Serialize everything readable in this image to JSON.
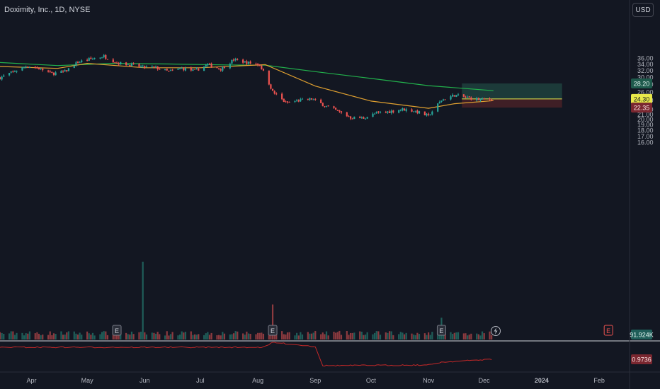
{
  "header": {
    "title": "Doximity, Inc., 1D, NYSE",
    "currency": "USD"
  },
  "colors": {
    "background": "#131722",
    "up": "#26a69a",
    "down": "#ef5350",
    "volume_up": "#1f5e59",
    "volume_down": "#8c3a3f",
    "ma_long": "#22b14c",
    "ma_short": "#e0a030",
    "indicator": "#c62828",
    "profit_zone": "#1c3a39",
    "loss_zone": "#3f1f26",
    "entry_line": "#e8e84a"
  },
  "chart_data": {
    "type": "candlestick",
    "symbol": "Doximity, Inc.",
    "interval": "1D",
    "exchange": "NYSE",
    "y_scale": "log",
    "y_ticks": [
      16.0,
      17.0,
      18.0,
      19.0,
      20.0,
      21.0,
      22.0,
      24.0,
      26.0,
      28.0,
      30.0,
      32.0,
      34.0,
      36.0
    ],
    "y_tick_labels": [
      "16.00",
      "17.00",
      "18.00",
      "19.00",
      "20.00",
      "21.00",
      "22.00",
      "24.00",
      "26.00",
      "28.00",
      "30.00",
      "32.00",
      "34.00",
      "36.00"
    ],
    "x_labels": [
      "Apr",
      "May",
      "Jun",
      "Jul",
      "Aug",
      "Sep",
      "Oct",
      "Nov",
      "Dec",
      "2024",
      "Feb"
    ],
    "x_label_dates": [
      "2023-04-01",
      "2023-05-01",
      "2023-06-01",
      "2023-07-01",
      "2023-08-01",
      "2023-09-01",
      "2023-10-01",
      "2023-11-01",
      "2023-12-01",
      "2024-01-01",
      "2024-02-01"
    ],
    "x_range": [
      "2023-03-15",
      "2024-02-17"
    ],
    "close_path": [
      [
        "2023-03-15",
        29.8
      ],
      [
        "2023-03-22",
        31.5
      ],
      [
        "2023-03-29",
        33.3
      ],
      [
        "2023-04-05",
        32.6
      ],
      [
        "2023-04-12",
        31.0
      ],
      [
        "2023-04-19",
        31.6
      ],
      [
        "2023-04-26",
        34.6
      ],
      [
        "2023-05-03",
        35.7
      ],
      [
        "2023-05-10",
        36.6
      ],
      [
        "2023-05-17",
        34.4
      ],
      [
        "2023-05-24",
        33.8
      ],
      [
        "2023-05-31",
        33.0
      ],
      [
        "2023-06-07",
        32.8
      ],
      [
        "2023-06-14",
        31.6
      ],
      [
        "2023-06-21",
        32.6
      ],
      [
        "2023-06-28",
        31.8
      ],
      [
        "2023-07-05",
        33.8
      ],
      [
        "2023-07-12",
        32.4
      ],
      [
        "2023-07-19",
        35.4
      ],
      [
        "2023-07-26",
        34.5
      ],
      [
        "2023-08-02",
        33.8
      ],
      [
        "2023-08-09",
        26.0
      ],
      [
        "2023-08-16",
        23.4
      ],
      [
        "2023-08-23",
        23.9
      ],
      [
        "2023-08-30",
        24.3
      ],
      [
        "2023-09-06",
        22.8
      ],
      [
        "2023-09-13",
        21.6
      ],
      [
        "2023-09-20",
        20.3
      ],
      [
        "2023-09-27",
        20.2
      ],
      [
        "2023-10-04",
        21.2
      ],
      [
        "2023-10-11",
        21.5
      ],
      [
        "2023-10-18",
        22.0
      ],
      [
        "2023-10-25",
        21.6
      ],
      [
        "2023-11-01",
        20.6
      ],
      [
        "2023-11-08",
        24.0
      ],
      [
        "2023-11-15",
        25.2
      ],
      [
        "2023-11-22",
        24.6
      ],
      [
        "2023-11-29",
        24.1
      ],
      [
        "2023-12-05",
        24.3
      ]
    ],
    "series": [
      {
        "role": "ma_long",
        "points": [
          [
            "2023-03-15",
            34.5
          ],
          [
            "2023-04-15",
            33.5
          ],
          [
            "2023-05-15",
            34.2
          ],
          [
            "2023-06-15",
            34.0
          ],
          [
            "2023-07-15",
            33.7
          ],
          [
            "2023-08-05",
            33.6
          ],
          [
            "2023-09-01",
            31.6
          ],
          [
            "2023-10-01",
            29.6
          ],
          [
            "2023-11-01",
            27.6
          ],
          [
            "2023-12-06",
            26.3
          ]
        ]
      },
      {
        "role": "ma_short",
        "points": [
          [
            "2023-03-15",
            33.2
          ],
          [
            "2023-04-15",
            32.6
          ],
          [
            "2023-05-01",
            34.2
          ],
          [
            "2023-06-01",
            32.8
          ],
          [
            "2023-07-01",
            32.8
          ],
          [
            "2023-08-05",
            33.8
          ],
          [
            "2023-09-01",
            27.5
          ],
          [
            "2023-10-01",
            23.8
          ],
          [
            "2023-11-01",
            22.2
          ],
          [
            "2023-11-15",
            23.2
          ],
          [
            "2023-12-06",
            23.9
          ]
        ]
      }
    ],
    "position": {
      "start": "2023-11-19",
      "end": "2024-01-12",
      "entry": 24.3,
      "target": 28.2,
      "stop": 22.35,
      "entry_label": "24.30",
      "target_label": "28.20",
      "stop_label": "22.35"
    },
    "volume_label": "91.924K",
    "indicator_label": "0.9736",
    "volume_spikes": [
      [
        "2023-05-31",
        1.0
      ],
      [
        "2023-08-09",
        0.45
      ],
      [
        "2023-11-08",
        0.28
      ]
    ],
    "earnings_markers": [
      {
        "date": "2023-05-17",
        "label": "E"
      },
      {
        "date": "2023-08-09",
        "label": "E"
      },
      {
        "date": "2023-11-08",
        "label": "E"
      },
      {
        "date": "2024-02-06",
        "label": "E"
      }
    ],
    "grid": false,
    "legend": "none"
  }
}
